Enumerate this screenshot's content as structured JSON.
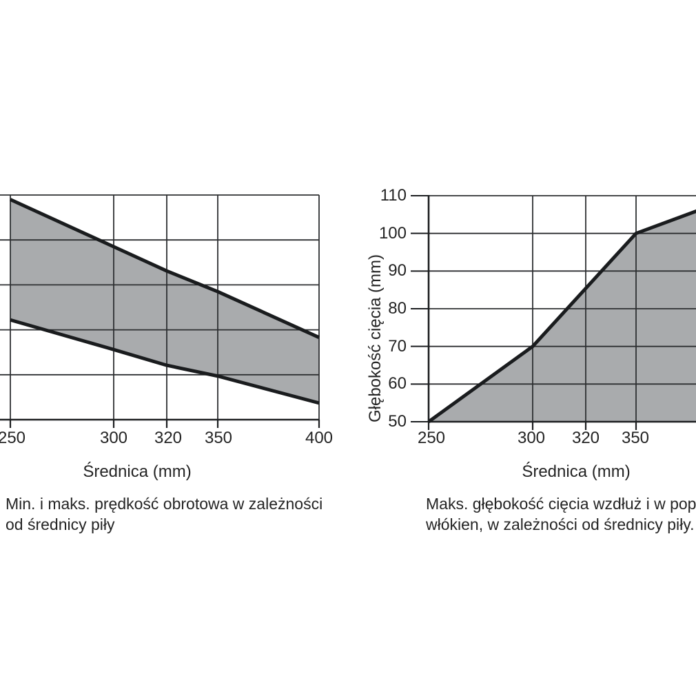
{
  "colors": {
    "background": "#ffffff",
    "grid": "#2d2f31",
    "axis": "#1c1e20",
    "data_line": "#1a1c1e",
    "area_fill": "#a9abad",
    "text": "#242424"
  },
  "left_chart": {
    "x_axis_label": "Średnica (mm)",
    "x_tick_labels": [
      "250",
      "300",
      "320",
      "350",
      "400"
    ],
    "y_axis_labels_visible": false,
    "caption_lines": [
      "Min. i maks. prędkość obrotowa w zależności",
      "od średnicy piły"
    ]
  },
  "right_chart": {
    "y_axis_label": "Głębokość cięcia (mm)",
    "y_tick_labels": [
      "110",
      "100",
      "90",
      "80",
      "70",
      "60",
      "50"
    ],
    "x_axis_label": "Średnica (mm)",
    "x_tick_labels": [
      "250",
      "300",
      "320",
      "350"
    ],
    "caption_lines": [
      "Maks. głębokość cięcia wzdłuż i w popr",
      "włókien, w zależności od średnicy piły."
    ]
  },
  "chart_data": [
    {
      "type": "area",
      "variant": "shaded band between max and min lines",
      "title": "Min. i maks. prędkość obrotowa w zależności od średnicy piły",
      "xlabel": "Średnica (mm)",
      "ylabel": "",
      "x_ticks": [
        250,
        300,
        320,
        350,
        400
      ],
      "x": [
        250,
        300,
        320,
        350,
        400
      ],
      "series": [
        {
          "name": "maks. prędkość obrotowa (upper line)",
          "values_gridline_units": [
            4.9,
            3.85,
            3.31,
            2.85,
            1.83
          ]
        },
        {
          "name": "min. prędkość obrotowa (lower line)",
          "values_gridline_units": [
            2.22,
            1.56,
            1.21,
            0.97,
            0.37
          ]
        }
      ],
      "y_axis_note": "y-axis tick labels are cropped off the left edge of the screenshot; values are given in visible gridline units (0 = bottom axis, 5 = top gridline)",
      "grid": true,
      "legend": false,
      "fill_between_series": true
    },
    {
      "type": "area",
      "title": "Maks. głębokość cięcia wzdłuż i w popr włókien, w zależności od średnicy piły.",
      "xlabel": "Średnica (mm)",
      "ylabel": "Głębokość cięcia (mm)",
      "x_ticks": [
        250,
        300,
        320,
        350
      ],
      "ylim": [
        50,
        110
      ],
      "x": [
        250,
        300,
        350,
        380
      ],
      "values": [
        50,
        70,
        100,
        106
      ],
      "clip_note": "curve, gridlines and the 400 mm tick are cropped by the right edge of the screenshot (visible end ≈ 106 mm)",
      "grid": true,
      "legend": false,
      "fill_below_line": true
    }
  ]
}
